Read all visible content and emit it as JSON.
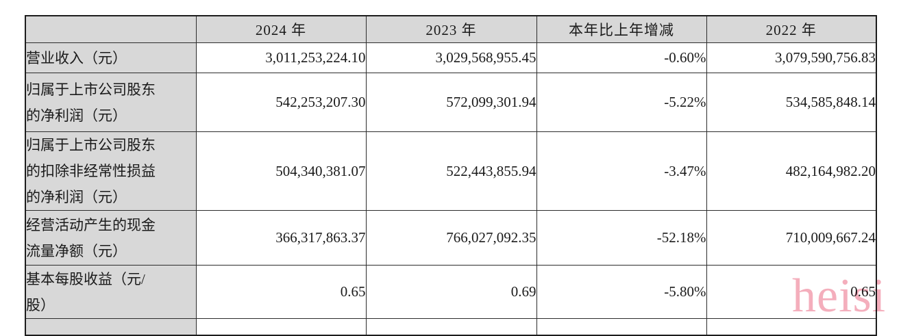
{
  "table": {
    "columns": [
      "",
      "2024 年",
      "2023 年",
      "本年比上年增减",
      "2022 年"
    ],
    "rows": [
      {
        "label": "营业收入（元）",
        "v2024": "3,011,253,224.10",
        "v2023": "3,029,568,955.45",
        "change": "-0.60%",
        "v2022": "3,079,590,756.83"
      },
      {
        "label": "归属于上市公司股东\n的净利润（元）",
        "v2024": "542,253,207.30",
        "v2023": "572,099,301.94",
        "change": "-5.22%",
        "v2022": "534,585,848.14"
      },
      {
        "label": "归属于上市公司股东\n的扣除非经常性损益\n的净利润（元）",
        "v2024": "504,340,381.07",
        "v2023": "522,443,855.94",
        "change": "-3.47%",
        "v2022": "482,164,982.20"
      },
      {
        "label": "经营活动产生的现金\n流量净额（元）",
        "v2024": "366,317,863.37",
        "v2023": "766,027,092.35",
        "change": "-52.18%",
        "v2022": "710,009,667.24"
      },
      {
        "label": "基本每股收益（元/\n股）",
        "v2024": "0.65",
        "v2023": "0.69",
        "change": "-5.80%",
        "v2022": "0.65"
      }
    ]
  },
  "watermark": {
    "text": "heisi",
    "color": "#f4aebc"
  },
  "colors": {
    "cell_shading": "#d8d8d8",
    "border": "#2b2b2b",
    "text": "#1a1a1a",
    "background": "#ffffff"
  }
}
